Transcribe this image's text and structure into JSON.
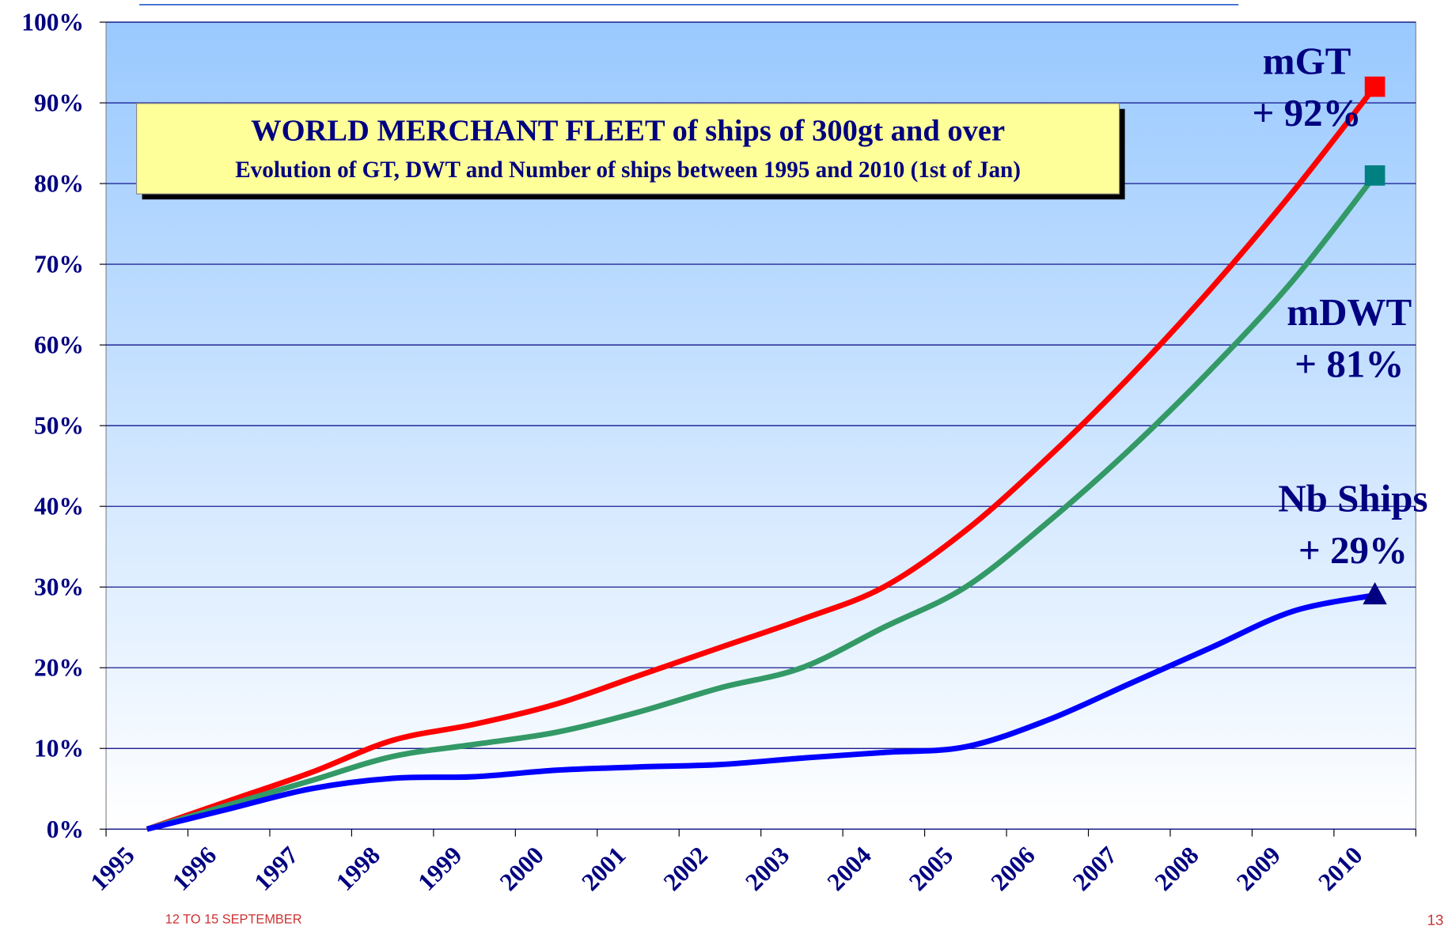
{
  "chart_data": {
    "type": "line",
    "title": "WORLD MERCHANT FLEET of ships of 300gt and over",
    "subtitle": "Evolution of GT, DWT and Number of ships between 1995 and 2010 (1st of Jan)",
    "categories": [
      "1995",
      "1996",
      "1997",
      "1998",
      "1999",
      "2000",
      "2001",
      "2002",
      "2003",
      "2004",
      "2005",
      "2006",
      "2007",
      "2008",
      "2009",
      "2010"
    ],
    "series": [
      {
        "name": "mGT",
        "color": "#ff0000",
        "marker": "square",
        "marker_color": "#ff0000",
        "annotation": "+ 92%",
        "values": [
          0,
          3.5,
          7,
          11,
          13,
          15.5,
          19,
          22.5,
          26,
          30,
          37,
          46,
          56,
          67,
          79,
          92
        ]
      },
      {
        "name": "mDWT",
        "color": "#339966",
        "marker": "square",
        "marker_color": "#008080",
        "annotation": "+ 81%",
        "values": [
          0,
          3,
          6,
          9,
          10.5,
          12,
          14.5,
          17.5,
          20,
          25,
          30,
          38,
          47,
          57,
          68,
          81
        ]
      },
      {
        "name": "Nb Ships",
        "color": "#0000ff",
        "marker": "triangle",
        "marker_color": "#000080",
        "annotation": "+ 29%",
        "values": [
          0,
          2.5,
          5,
          6.3,
          6.5,
          7.3,
          7.7,
          8,
          8.8,
          9.5,
          10.2,
          13.5,
          18,
          22.5,
          27,
          29
        ]
      }
    ],
    "ylim": [
      0,
      100
    ],
    "yticks": [
      {
        "value": 0,
        "label": "0%"
      },
      {
        "value": 10,
        "label": "10%"
      },
      {
        "value": 20,
        "label": "20%"
      },
      {
        "value": 30,
        "label": "30%"
      },
      {
        "value": 40,
        "label": "40%"
      },
      {
        "value": 50,
        "label": "50%"
      },
      {
        "value": 60,
        "label": "60%"
      },
      {
        "value": 70,
        "label": "70%"
      },
      {
        "value": 80,
        "label": "80%"
      },
      {
        "value": 90,
        "label": "90%"
      },
      {
        "value": 100,
        "label": "100%"
      }
    ],
    "grid": true
  },
  "footer": {
    "left": "12 TO 15 SEPTEMBER",
    "page": "13"
  }
}
